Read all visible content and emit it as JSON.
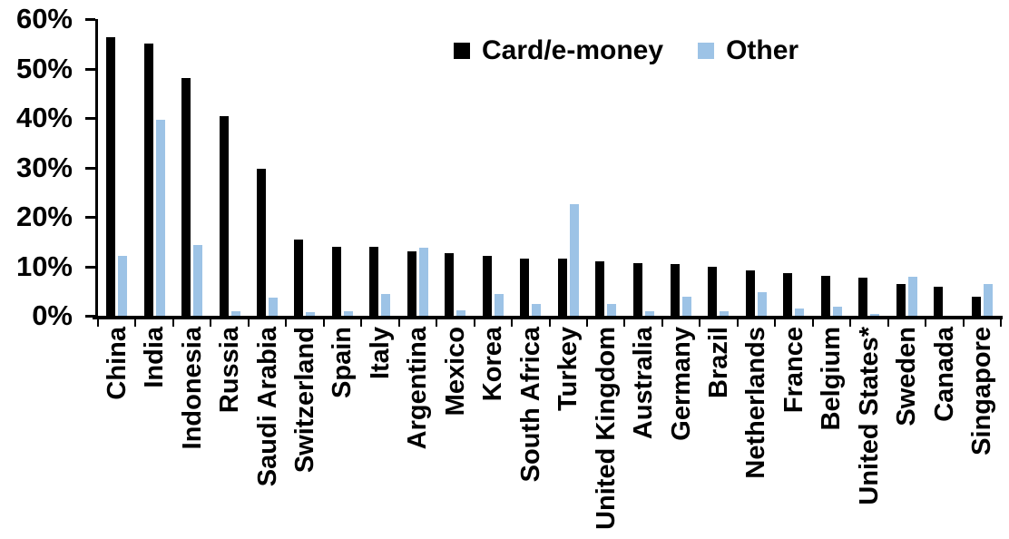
{
  "chart_data": {
    "type": "bar",
    "title": "",
    "xlabel": "",
    "ylabel": "",
    "grid": false,
    "legend_position": "top-center",
    "y_axis": {
      "min": 0,
      "max": 60,
      "tick_step": 10,
      "tick_labels": [
        "60%",
        "50%",
        "40%",
        "30%",
        "20%",
        "10%",
        "0%"
      ]
    },
    "categories": [
      "China",
      "India",
      "Indonesia",
      "Russia",
      "Saudi Arabia",
      "Switzerland",
      "Spain",
      "Italy",
      "Argentina",
      "Mexico",
      "Korea",
      "South Africa",
      "Turkey",
      "United Kingdom",
      "Australia",
      "Germany",
      "Brazil",
      "Netherlands",
      "France",
      "Belgium",
      "United States*",
      "Sweden",
      "Canada",
      "Singapore"
    ],
    "series": [
      {
        "name": "Card/e-money",
        "color": "#000000",
        "values": [
          56.4,
          55.1,
          48.1,
          40.4,
          29.7,
          15.5,
          14.0,
          13.9,
          13.1,
          12.7,
          12.2,
          11.6,
          11.5,
          11.0,
          10.7,
          10.5,
          9.9,
          9.1,
          8.6,
          8.0,
          7.7,
          6.4,
          5.8,
          3.9
        ]
      },
      {
        "name": "Other",
        "color": "#9DC3E6",
        "values": [
          12.1,
          39.6,
          14.4,
          0.9,
          3.6,
          0.7,
          0.9,
          4.4,
          13.7,
          1.1,
          4.4,
          2.3,
          22.5,
          2.3,
          0.9,
          3.9,
          1.0,
          4.7,
          1.4,
          1.9,
          0.3,
          7.9,
          0.0,
          6.5
        ]
      }
    ]
  }
}
